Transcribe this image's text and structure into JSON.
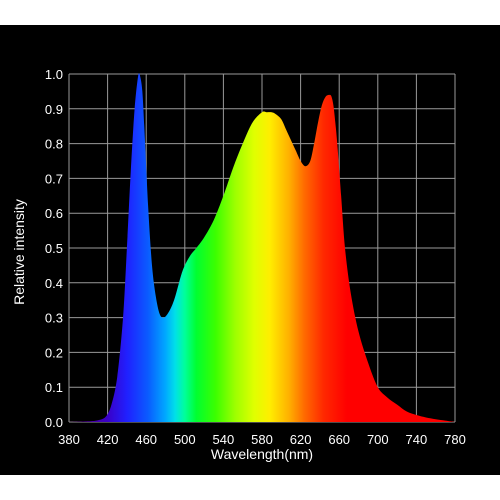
{
  "chart_data": {
    "type": "area",
    "title": "",
    "xlabel": "Wavelength(nm)",
    "ylabel": "Relative intensity",
    "xlim": [
      380,
      780
    ],
    "ylim": [
      0,
      1.0
    ],
    "x_ticks": [
      "380",
      "420",
      "460",
      "500",
      "540",
      "580",
      "620",
      "660",
      "700",
      "740",
      "780"
    ],
    "y_ticks": [
      "0.0",
      "0.1",
      "0.2",
      "0.3",
      "0.4",
      "0.5",
      "0.6",
      "0.7",
      "0.8",
      "0.9",
      "1.0"
    ],
    "grid": true,
    "fill": "spectrum-gradient",
    "series": [
      {
        "x": [
          380,
          400,
          410,
          418,
          424,
          430,
          436,
          440,
          444,
          448,
          452,
          454,
          456,
          458,
          462,
          466,
          470,
          474,
          478,
          482,
          486,
          490,
          496,
          500,
          506,
          512,
          520,
          530,
          540,
          550,
          560,
          570,
          580,
          585,
          590,
          594,
          600,
          605,
          610,
          615,
          620,
          625,
          630,
          634,
          638,
          642,
          646,
          650,
          652,
          654,
          656,
          658,
          662,
          666,
          672,
          680,
          690,
          700,
          710,
          720,
          730,
          740,
          750,
          760,
          770,
          780
        ],
        "y": [
          0.0,
          0.002,
          0.005,
          0.015,
          0.05,
          0.13,
          0.3,
          0.5,
          0.72,
          0.9,
          1.0,
          0.99,
          0.95,
          0.85,
          0.62,
          0.45,
          0.36,
          0.31,
          0.3,
          0.31,
          0.33,
          0.36,
          0.42,
          0.45,
          0.48,
          0.5,
          0.53,
          0.58,
          0.65,
          0.73,
          0.8,
          0.86,
          0.89,
          0.89,
          0.89,
          0.885,
          0.87,
          0.84,
          0.81,
          0.78,
          0.75,
          0.735,
          0.75,
          0.8,
          0.86,
          0.91,
          0.935,
          0.94,
          0.935,
          0.91,
          0.86,
          0.8,
          0.65,
          0.5,
          0.37,
          0.26,
          0.17,
          0.1,
          0.07,
          0.05,
          0.03,
          0.02,
          0.013,
          0.008,
          0.004,
          0.0
        ]
      }
    ],
    "colors": {
      "background": "#000000",
      "grid": "#9a9a9a",
      "text": "#ffffff"
    }
  }
}
